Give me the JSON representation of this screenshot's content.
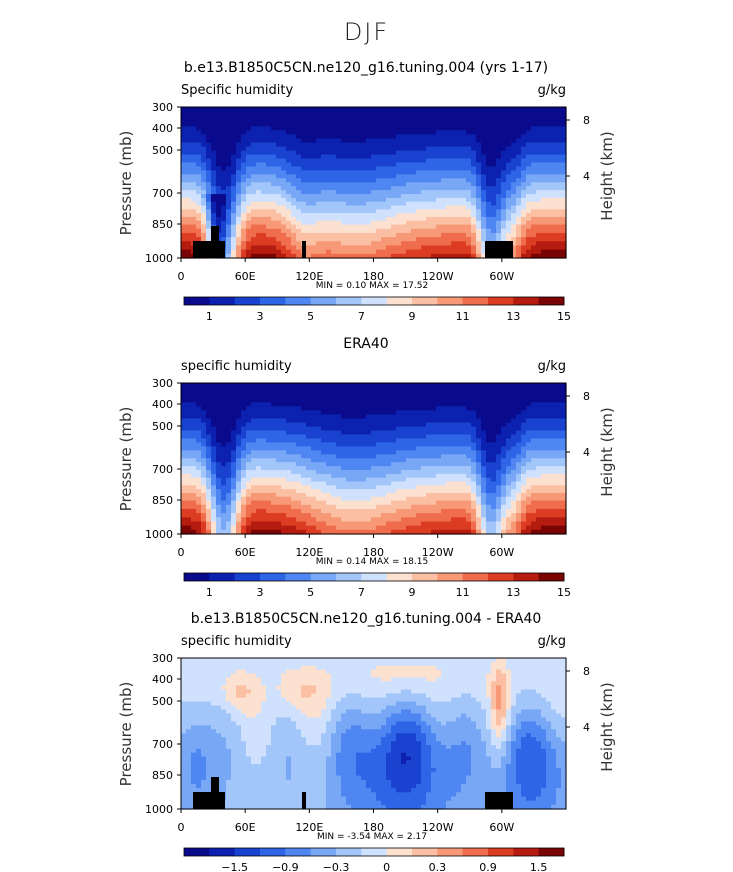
{
  "figure": {
    "title": "DJF"
  },
  "chart_data": [
    {
      "type": "heatmap",
      "title": "b.e13.B1850C5CN.ne120_g16.tuning.004 (yrs 1-17)",
      "variable": "Specific humidity",
      "units": "g/kg",
      "ylabel": "Pressure (mb)",
      "y2label": "Height (km)",
      "x_ticks": [
        "0",
        "60E",
        "120E",
        "180",
        "120W",
        "60W"
      ],
      "y_ticks": [
        "300",
        "400",
        "500",
        "700",
        "850",
        "1000"
      ],
      "y2_ticks": [
        "8",
        "4"
      ],
      "stats": "MIN =    0.10   MAX =   17.52",
      "colorbar_labels": [
        "1",
        "3",
        "5",
        "7",
        "9",
        "11",
        "13",
        "15"
      ],
      "scale": "abs",
      "has_topography": true
    },
    {
      "type": "heatmap",
      "title": "ERA40",
      "variable": "specific humidity",
      "units": "g/kg",
      "ylabel": "Pressure (mb)",
      "y2label": "Height (km)",
      "x_ticks": [
        "0",
        "60E",
        "120E",
        "180",
        "120W",
        "60W"
      ],
      "y_ticks": [
        "300",
        "400",
        "500",
        "700",
        "850",
        "1000"
      ],
      "y2_ticks": [
        "8",
        "4"
      ],
      "stats": "MIN =    0.14   MAX =   18.15",
      "colorbar_labels": [
        "1",
        "3",
        "5",
        "7",
        "9",
        "11",
        "13",
        "15"
      ],
      "scale": "abs",
      "has_topography": false
    },
    {
      "type": "heatmap",
      "title": "b.e13.B1850C5CN.ne120_g16.tuning.004 - ERA40",
      "variable": "specific humidity",
      "units": "g/kg",
      "ylabel": "Pressure (mb)",
      "y2label": "Height (km)",
      "x_ticks": [
        "0",
        "60E",
        "120E",
        "180",
        "120W",
        "60W"
      ],
      "y_ticks": [
        "300",
        "400",
        "500",
        "700",
        "850",
        "1000"
      ],
      "y2_ticks": [
        "8",
        "4"
      ],
      "stats": "MIN =   -3.54   MAX =    2.17",
      "colorbar_labels": [
        "−1.5",
        "−0.9",
        "−0.3",
        "0",
        "0.3",
        "0.9",
        "1.5"
      ],
      "scale": "diff",
      "has_topography": true
    }
  ],
  "colors": {
    "scale": [
      "#0a0a8c",
      "#0c21b0",
      "#1842cf",
      "#2e64e6",
      "#4f86f2",
      "#78a7f6",
      "#a3c6fa",
      "#cfe1fc",
      "#fce0d0",
      "#fbbfa3",
      "#f79876",
      "#ef6c4d",
      "#dc3c22",
      "#b51c0f",
      "#7a0403"
    ]
  }
}
